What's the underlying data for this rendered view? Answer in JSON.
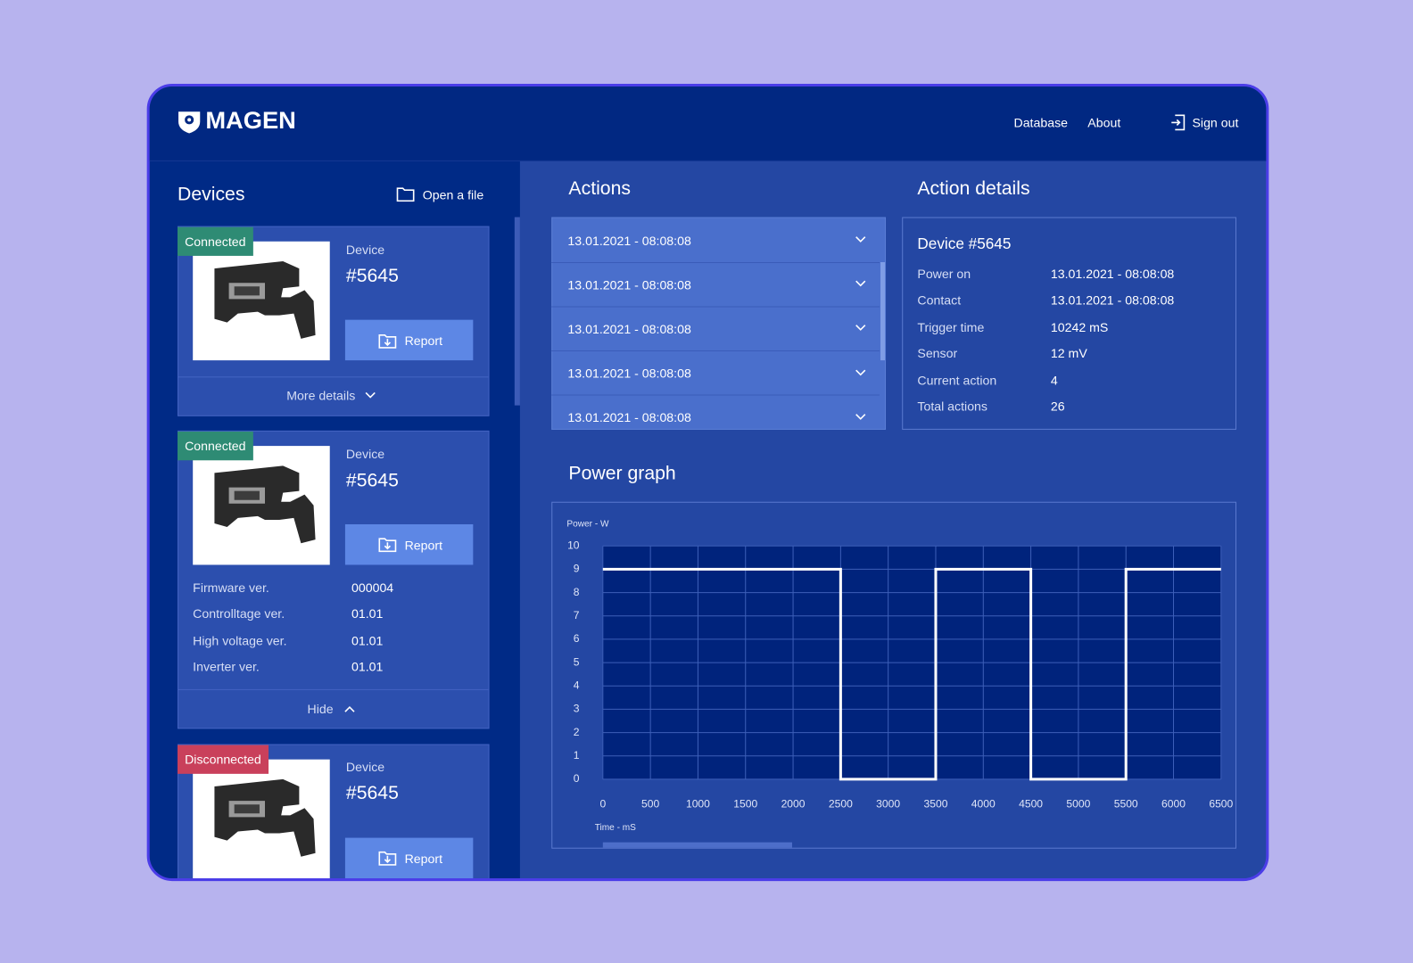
{
  "header": {
    "logo": "MAGEN",
    "nav": [
      "Database",
      "About"
    ],
    "sign_out": "Sign out"
  },
  "devices": {
    "title": "Devices",
    "open_file": "Open a file",
    "cards": [
      {
        "status": "Connected",
        "label": "Device",
        "id": "#5645",
        "button": "Report",
        "toggle": "More details"
      },
      {
        "status": "Connected",
        "label": "Device",
        "id": "#5645",
        "button": "Report",
        "details": [
          {
            "label": "Firmware ver.",
            "value": "000004"
          },
          {
            "label": "Controlltage ver.",
            "value": "01.01"
          },
          {
            "label": "High voltage ver.",
            "value": "01.01"
          },
          {
            "label": "Inverter ver.",
            "value": "01.01"
          }
        ],
        "toggle": "Hide"
      },
      {
        "status": "Disconnected",
        "label": "Device",
        "id": "#5645",
        "button": "Report"
      }
    ]
  },
  "actions": {
    "title": "Actions",
    "items": [
      "13.01.2021 - 08:08:08",
      "13.01.2021 - 08:08:08",
      "13.01.2021 - 08:08:08",
      "13.01.2021 - 08:08:08",
      "13.01.2021 - 08:08:08"
    ]
  },
  "action_details": {
    "title": "Action details",
    "device": "Device #5645",
    "rows": [
      {
        "label": "Power on",
        "value": "13.01.2021 - 08:08:08"
      },
      {
        "label": "Contact",
        "value": "13.01.2021 - 08:08:08"
      },
      {
        "label": "Trigger time",
        "value": "10242 mS"
      },
      {
        "label": "Sensor",
        "value": "12 mV"
      },
      {
        "label": "Current action",
        "value": "4"
      },
      {
        "label": "Total actions",
        "value": "26"
      }
    ]
  },
  "power_graph": {
    "type": "line",
    "title": "Power graph",
    "y_label": "Power - W",
    "x_label": "Time - mS",
    "x": [
      0,
      2500,
      2500,
      3500,
      3500,
      4500,
      4500,
      5500,
      5500,
      6500
    ],
    "values": [
      9,
      9,
      0,
      0,
      9,
      9,
      0,
      0,
      9,
      9
    ],
    "xlim": [
      0,
      6500
    ],
    "ylim": [
      0,
      10
    ],
    "xticks": [
      0,
      500,
      1000,
      1500,
      2000,
      2500,
      3000,
      3500,
      4000,
      4500,
      5000,
      5500,
      6000,
      6500
    ],
    "yticks": [
      0,
      1,
      2,
      3,
      4,
      5,
      6,
      7,
      8,
      9,
      10
    ],
    "color": "#ffffff",
    "grid": true
  }
}
